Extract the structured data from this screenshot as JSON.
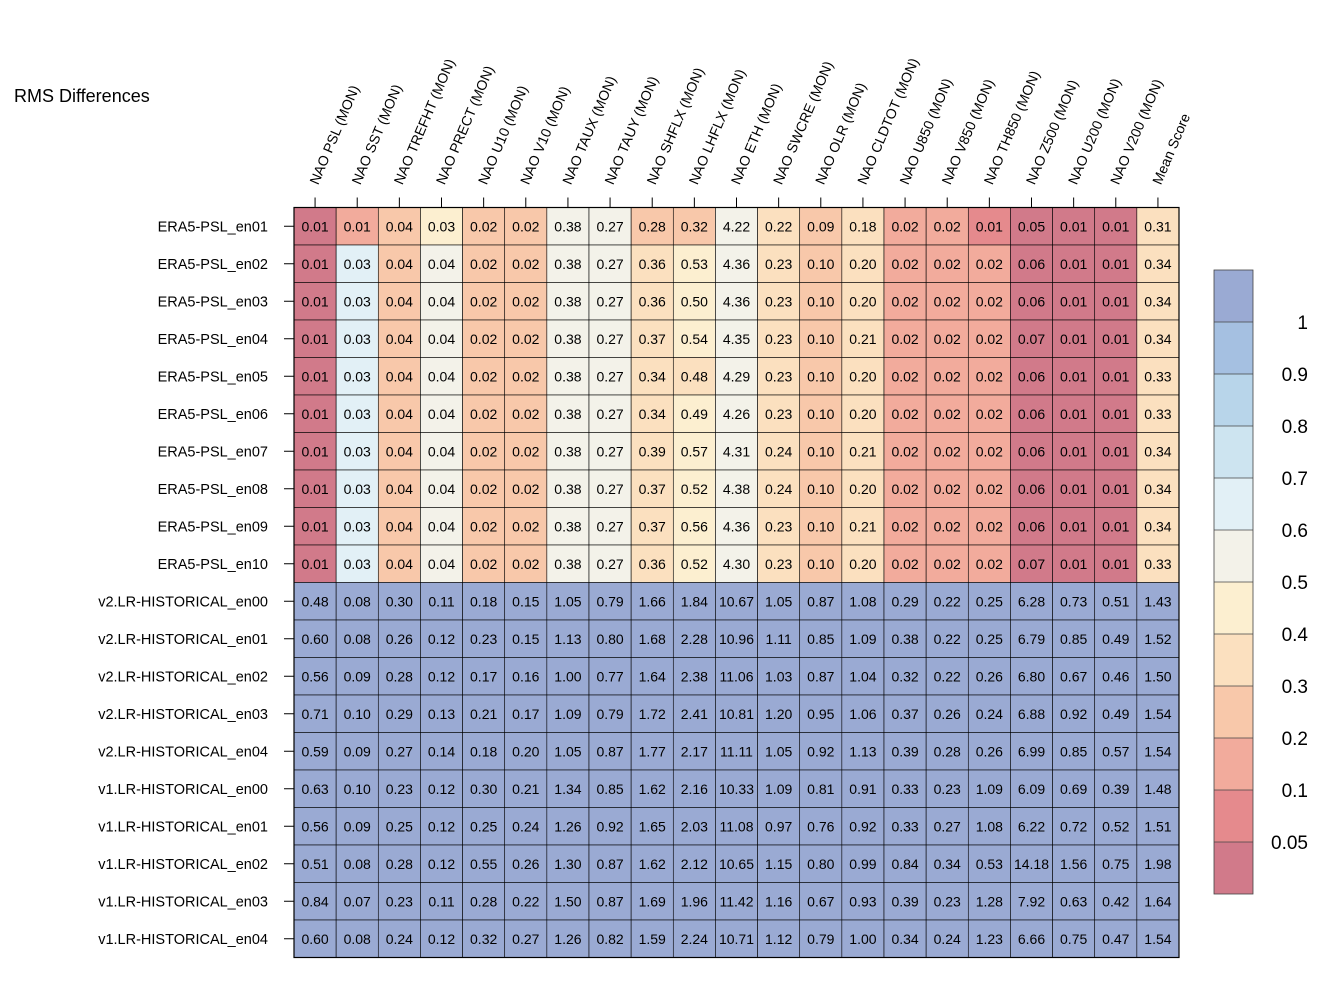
{
  "chart_data": {
    "type": "heatmap",
    "title": "RMS Differences",
    "columns": [
      "NAO PSL (MON)",
      "NAO SST (MON)",
      "NAO TREFHT (MON)",
      "NAO PRECT (MON)",
      "NAO U10 (MON)",
      "NAO V10 (MON)",
      "NAO TAUX (MON)",
      "NAO TAUY (MON)",
      "NAO SHFLX (MON)",
      "NAO LHFLX (MON)",
      "NAO ETH (MON)",
      "NAO SWCRE (MON)",
      "NAO OLR (MON)",
      "NAO CLDTOT (MON)",
      "NAO U850 (MON)",
      "NAO V850 (MON)",
      "NAO TH850 (MON)",
      "NAO Z500 (MON)",
      "NAO U200 (MON)",
      "NAO V200 (MON)",
      "Mean Score"
    ],
    "rows": [
      "ERA5-PSL_en01",
      "ERA5-PSL_en02",
      "ERA5-PSL_en03",
      "ERA5-PSL_en04",
      "ERA5-PSL_en05",
      "ERA5-PSL_en06",
      "ERA5-PSL_en07",
      "ERA5-PSL_en08",
      "ERA5-PSL_en09",
      "ERA5-PSL_en10",
      "v2.LR-HISTORICAL_en00",
      "v2.LR-HISTORICAL_en01",
      "v2.LR-HISTORICAL_en02",
      "v2.LR-HISTORICAL_en03",
      "v2.LR-HISTORICAL_en04",
      "v1.LR-HISTORICAL_en00",
      "v1.LR-HISTORICAL_en01",
      "v1.LR-HISTORICAL_en02",
      "v1.LR-HISTORICAL_en03",
      "v1.LR-HISTORICAL_en04"
    ],
    "values": [
      [
        "0.01",
        "0.01",
        "0.04",
        "0.03",
        "0.02",
        "0.02",
        "0.38",
        "0.27",
        "0.28",
        "0.32",
        "4.22",
        "0.22",
        "0.09",
        "0.18",
        "0.02",
        "0.02",
        "0.01",
        "0.05",
        "0.01",
        "0.01",
        "0.31"
      ],
      [
        "0.01",
        "0.03",
        "0.04",
        "0.04",
        "0.02",
        "0.02",
        "0.38",
        "0.27",
        "0.36",
        "0.53",
        "4.36",
        "0.23",
        "0.10",
        "0.20",
        "0.02",
        "0.02",
        "0.02",
        "0.06",
        "0.01",
        "0.01",
        "0.34"
      ],
      [
        "0.01",
        "0.03",
        "0.04",
        "0.04",
        "0.02",
        "0.02",
        "0.38",
        "0.27",
        "0.36",
        "0.50",
        "4.36",
        "0.23",
        "0.10",
        "0.20",
        "0.02",
        "0.02",
        "0.02",
        "0.06",
        "0.01",
        "0.01",
        "0.34"
      ],
      [
        "0.01",
        "0.03",
        "0.04",
        "0.04",
        "0.02",
        "0.02",
        "0.38",
        "0.27",
        "0.37",
        "0.54",
        "4.35",
        "0.23",
        "0.10",
        "0.21",
        "0.02",
        "0.02",
        "0.02",
        "0.07",
        "0.01",
        "0.01",
        "0.34"
      ],
      [
        "0.01",
        "0.03",
        "0.04",
        "0.04",
        "0.02",
        "0.02",
        "0.38",
        "0.27",
        "0.34",
        "0.48",
        "4.29",
        "0.23",
        "0.10",
        "0.20",
        "0.02",
        "0.02",
        "0.02",
        "0.06",
        "0.01",
        "0.01",
        "0.33"
      ],
      [
        "0.01",
        "0.03",
        "0.04",
        "0.04",
        "0.02",
        "0.02",
        "0.38",
        "0.27",
        "0.34",
        "0.49",
        "4.26",
        "0.23",
        "0.10",
        "0.20",
        "0.02",
        "0.02",
        "0.02",
        "0.06",
        "0.01",
        "0.01",
        "0.33"
      ],
      [
        "0.01",
        "0.03",
        "0.04",
        "0.04",
        "0.02",
        "0.02",
        "0.38",
        "0.27",
        "0.39",
        "0.57",
        "4.31",
        "0.24",
        "0.10",
        "0.21",
        "0.02",
        "0.02",
        "0.02",
        "0.06",
        "0.01",
        "0.01",
        "0.34"
      ],
      [
        "0.01",
        "0.03",
        "0.04",
        "0.04",
        "0.02",
        "0.02",
        "0.38",
        "0.27",
        "0.37",
        "0.52",
        "4.38",
        "0.24",
        "0.10",
        "0.20",
        "0.02",
        "0.02",
        "0.02",
        "0.06",
        "0.01",
        "0.01",
        "0.34"
      ],
      [
        "0.01",
        "0.03",
        "0.04",
        "0.04",
        "0.02",
        "0.02",
        "0.38",
        "0.27",
        "0.37",
        "0.56",
        "4.36",
        "0.23",
        "0.10",
        "0.21",
        "0.02",
        "0.02",
        "0.02",
        "0.06",
        "0.01",
        "0.01",
        "0.34"
      ],
      [
        "0.01",
        "0.03",
        "0.04",
        "0.04",
        "0.02",
        "0.02",
        "0.38",
        "0.27",
        "0.36",
        "0.52",
        "4.30",
        "0.23",
        "0.10",
        "0.20",
        "0.02",
        "0.02",
        "0.02",
        "0.07",
        "0.01",
        "0.01",
        "0.33"
      ],
      [
        "0.48",
        "0.08",
        "0.30",
        "0.11",
        "0.18",
        "0.15",
        "1.05",
        "0.79",
        "1.66",
        "1.84",
        "10.67",
        "1.05",
        "0.87",
        "1.08",
        "0.29",
        "0.22",
        "0.25",
        "6.28",
        "0.73",
        "0.51",
        "1.43"
      ],
      [
        "0.60",
        "0.08",
        "0.26",
        "0.12",
        "0.23",
        "0.15",
        "1.13",
        "0.80",
        "1.68",
        "2.28",
        "10.96",
        "1.11",
        "0.85",
        "1.09",
        "0.38",
        "0.22",
        "0.25",
        "6.79",
        "0.85",
        "0.49",
        "1.52"
      ],
      [
        "0.56",
        "0.09",
        "0.28",
        "0.12",
        "0.17",
        "0.16",
        "1.00",
        "0.77",
        "1.64",
        "2.38",
        "11.06",
        "1.03",
        "0.87",
        "1.04",
        "0.32",
        "0.22",
        "0.26",
        "6.80",
        "0.67",
        "0.46",
        "1.50"
      ],
      [
        "0.71",
        "0.10",
        "0.29",
        "0.13",
        "0.21",
        "0.17",
        "1.09",
        "0.79",
        "1.72",
        "2.41",
        "10.81",
        "1.20",
        "0.95",
        "1.06",
        "0.37",
        "0.26",
        "0.24",
        "6.88",
        "0.92",
        "0.49",
        "1.54"
      ],
      [
        "0.59",
        "0.09",
        "0.27",
        "0.14",
        "0.18",
        "0.20",
        "1.05",
        "0.87",
        "1.77",
        "2.17",
        "11.11",
        "1.05",
        "0.92",
        "1.13",
        "0.39",
        "0.28",
        "0.26",
        "6.99",
        "0.85",
        "0.57",
        "1.54"
      ],
      [
        "0.63",
        "0.10",
        "0.23",
        "0.12",
        "0.30",
        "0.21",
        "1.34",
        "0.85",
        "1.62",
        "2.16",
        "10.33",
        "1.09",
        "0.81",
        "0.91",
        "0.33",
        "0.23",
        "1.09",
        "6.09",
        "0.69",
        "0.39",
        "1.48"
      ],
      [
        "0.56",
        "0.09",
        "0.25",
        "0.12",
        "0.25",
        "0.24",
        "1.26",
        "0.92",
        "1.65",
        "2.03",
        "11.08",
        "0.97",
        "0.76",
        "0.92",
        "0.33",
        "0.27",
        "1.08",
        "6.22",
        "0.72",
        "0.52",
        "1.51"
      ],
      [
        "0.51",
        "0.08",
        "0.28",
        "0.12",
        "0.55",
        "0.26",
        "1.30",
        "0.87",
        "1.62",
        "2.12",
        "10.65",
        "1.15",
        "0.80",
        "0.99",
        "0.84",
        "0.34",
        "0.53",
        "14.18",
        "1.56",
        "0.75",
        "1.98"
      ],
      [
        "0.84",
        "0.07",
        "0.23",
        "0.11",
        "0.28",
        "0.22",
        "1.50",
        "0.87",
        "1.69",
        "1.96",
        "11.42",
        "1.16",
        "0.67",
        "0.93",
        "0.39",
        "0.23",
        "1.28",
        "7.92",
        "0.63",
        "0.42",
        "1.64"
      ],
      [
        "0.60",
        "0.08",
        "0.24",
        "0.12",
        "0.32",
        "0.27",
        "1.26",
        "0.82",
        "1.59",
        "2.24",
        "10.71",
        "1.12",
        "0.79",
        "1.00",
        "0.34",
        "0.24",
        "1.23",
        "6.66",
        "0.75",
        "0.47",
        "1.54"
      ]
    ],
    "colorbar": {
      "levels": [
        0.05,
        0.1,
        0.2,
        0.3,
        0.4,
        0.5,
        0.6,
        0.7,
        0.8,
        0.9,
        1
      ],
      "labels": [
        "0.05",
        "0.1",
        "0.2",
        "0.3",
        "0.4",
        "0.5",
        "0.6",
        "0.7",
        "0.8",
        "0.9",
        "1"
      ],
      "colors": [
        "#d17a8a",
        "#e58a8d",
        "#f2ab9c",
        "#f8c8aa",
        "#fbe0bf",
        "#fcefd0",
        "#f3f2e9",
        "#e2f0f6",
        "#cde4f0",
        "#b8d5ea",
        "#a5c0e1",
        "#9aaad3"
      ]
    }
  }
}
